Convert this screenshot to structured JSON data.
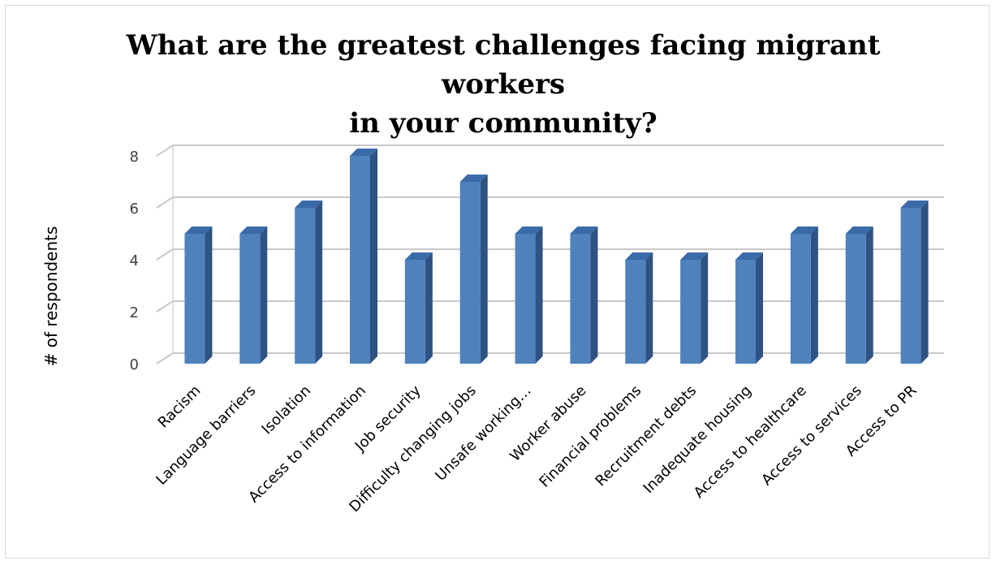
{
  "chart_data": {
    "type": "bar",
    "title": "What are the greatest challenges facing migrant workers in your community?",
    "title_lines": [
      "What are the greatest challenges facing migrant workers",
      "in your community?"
    ],
    "ylabel": "# of respondents",
    "xlabel": "",
    "ylim": [
      0,
      8
    ],
    "yticks": [
      "0",
      "2",
      "4",
      "6",
      "8"
    ],
    "grid": true,
    "legend": "none",
    "bar_color": "#4f81bd",
    "categories": [
      "Racism",
      "Language barriers",
      "Isolation",
      "Access to information",
      "Job security",
      "Difficulty changing jobs",
      "Unsafe working…",
      "Worker abuse",
      "Financial problems",
      "Recruitment debts",
      "Inadequate housing",
      "Access to healthcare",
      "Access to services",
      "Access to PR"
    ],
    "values": [
      5,
      5,
      6,
      8,
      4,
      7,
      5,
      5,
      4,
      4,
      4,
      5,
      5,
      6
    ]
  }
}
